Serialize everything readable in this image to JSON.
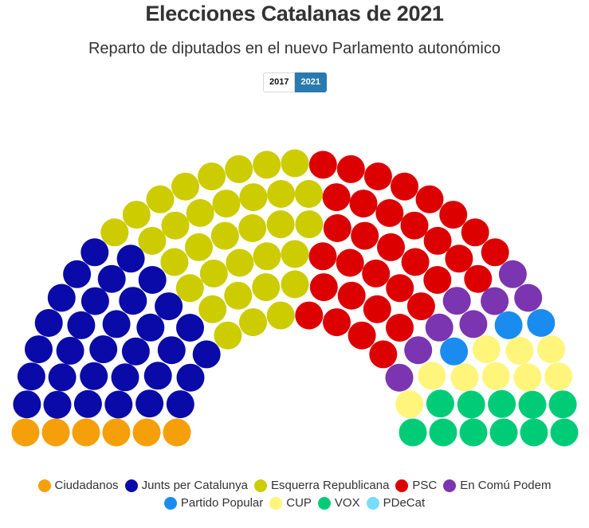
{
  "header": {
    "title": "Elecciones Catalanas de 2021",
    "subtitle": "Reparto de diputados en el nuevo Parlamento autonómico"
  },
  "year_tabs": [
    {
      "label": "2017",
      "active": false
    },
    {
      "label": "2021",
      "active": true
    }
  ],
  "chart_data": {
    "type": "parliament",
    "title": "Elecciones Catalanas de 2021",
    "subtitle": "Reparto de diputados en el nuevo Parlamento autonómico",
    "total_seats": 135,
    "series": [
      {
        "name": "Ciudadanos",
        "seats": 6,
        "color": "#f5a00a"
      },
      {
        "name": "Junts per Catalunya",
        "seats": 32,
        "color": "#0a0aa8"
      },
      {
        "name": "Esquerra Republicana",
        "seats": 33,
        "color": "#cccc00"
      },
      {
        "name": "PSC",
        "seats": 33,
        "color": "#dd0000"
      },
      {
        "name": "En Comú Podem",
        "seats": 8,
        "color": "#7b35b0"
      },
      {
        "name": "Partido Popular",
        "seats": 3,
        "color": "#1a8cf0"
      },
      {
        "name": "CUP",
        "seats": 9,
        "color": "#fff57a"
      },
      {
        "name": "VOX",
        "seats": 11,
        "color": "#00cc77"
      },
      {
        "name": "PDeCat",
        "seats": 0,
        "color": "#77ddff"
      }
    ],
    "legend_position": "bottom"
  }
}
